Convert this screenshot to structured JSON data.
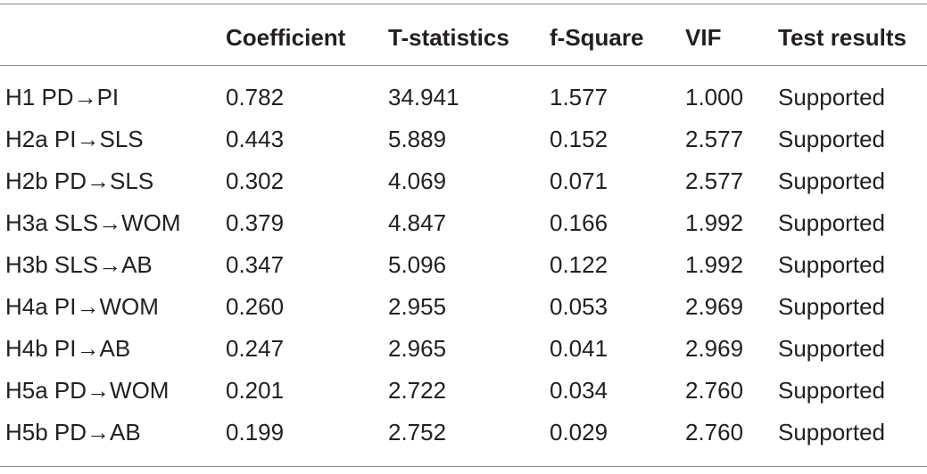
{
  "table": {
    "headers": [
      "",
      "Coefficient",
      "T-statistics",
      "f-Square",
      "VIF",
      "Test results"
    ],
    "rows": [
      [
        "H1 PD→PI",
        "0.782",
        "34.941",
        "1.577",
        "1.000",
        "Supported"
      ],
      [
        "H2a PI→SLS",
        "0.443",
        "5.889",
        "0.152",
        "2.577",
        "Supported"
      ],
      [
        "H2b PD→SLS",
        "0.302",
        "4.069",
        "0.071",
        "2.577",
        "Supported"
      ],
      [
        "H3a SLS→WOM",
        "0.379",
        "4.847",
        "0.166",
        "1.992",
        "Supported"
      ],
      [
        "H3b SLS→AB",
        "0.347",
        "5.096",
        "0.122",
        "1.992",
        "Supported"
      ],
      [
        "H4a PI→WOM",
        "0.260",
        "2.955",
        "0.053",
        "2.969",
        "Supported"
      ],
      [
        "H4b PI→AB",
        "0.247",
        "2.965",
        "0.041",
        "2.969",
        "Supported"
      ],
      [
        "H5a PD→WOM",
        "0.201",
        "2.722",
        "0.034",
        "2.760",
        "Supported"
      ],
      [
        "H5b PD→AB",
        "0.199",
        "2.752",
        "0.029",
        "2.760",
        "Supported"
      ]
    ]
  }
}
